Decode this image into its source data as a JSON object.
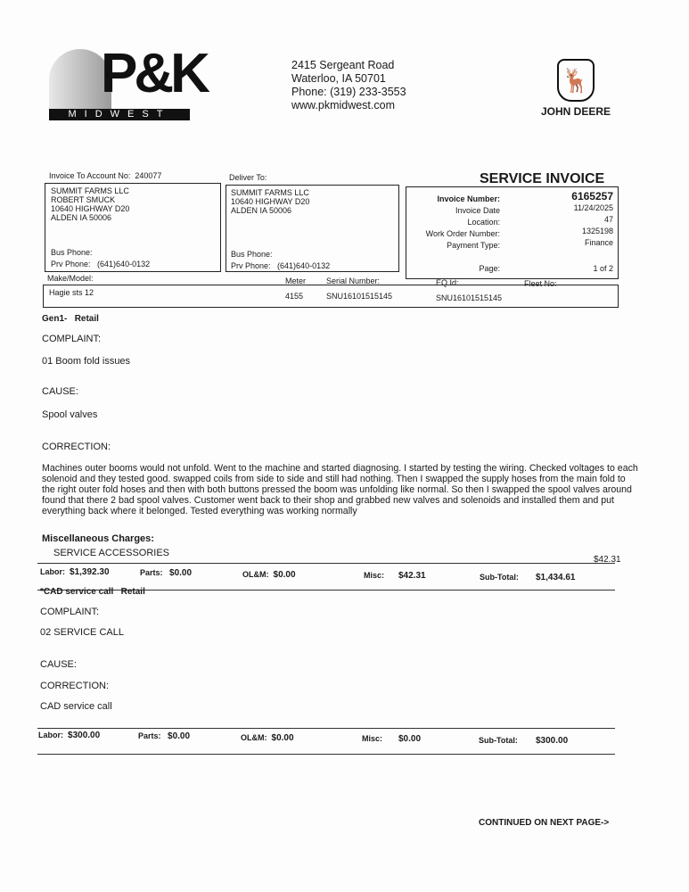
{
  "header": {
    "logo": {
      "main": "P&K",
      "sub": "MIDWEST"
    },
    "address": [
      "2415 Sergeant Road",
      "Waterloo, IA  50701",
      "Phone: (319) 233-3553",
      "www.pkmidwest.com"
    ],
    "brand_logo": "JOHN DEERE",
    "title": "SERVICE INVOICE"
  },
  "account": {
    "label": "Invoice To Account No:",
    "value": "240077"
  },
  "bill_to": {
    "lines": [
      "SUMMIT FARMS LLC",
      "ROBERT SMUCK",
      "10640 HIGHWAY D20",
      "ALDEN IA 50006"
    ],
    "bus_phone_label": "Bus Phone:",
    "prv_phone_label": "Prv Phone:",
    "prv_phone": "(641)640-0132"
  },
  "deliver_to": {
    "label": "Deliver To:",
    "lines": [
      "SUMMIT FARMS LLC",
      "10640 HIGHWAY D20",
      "ALDEN IA 50006"
    ],
    "bus_phone_label": "Bus Phone:",
    "prv_phone_label": "Prv Phone:",
    "prv_phone": "(641)640-0132"
  },
  "invoice_info": {
    "number_label": "Invoice Number:",
    "number": "6165257",
    "date_label": "Invoice Date",
    "date": "11/24/2025",
    "location_label": "Location:",
    "location": "47",
    "work_order_label": "Work Order Number:",
    "work_order": "1325198",
    "payment_label": "Payment Type:",
    "payment": "Finance",
    "page_label": "Page:",
    "page": "1 of 2"
  },
  "equipment": {
    "make_label": "Make/Model:",
    "make": "Hagie sts 12",
    "meter_label": "Meter",
    "meter": "4155",
    "serial_label": "Serial Number:",
    "serial": "SNU16101515145",
    "eq_label": "EQ Id:",
    "eq": "SNU16101515145",
    "fleet_label": "Fleet No:"
  },
  "jobs": [
    {
      "title": "Gen1-",
      "type": "Retail",
      "complaint_label": "COMPLAINT:",
      "complaint": "01 Boom fold issues",
      "cause_label": "CAUSE:",
      "cause": "Spool valves",
      "correction_label": "CORRECTION:",
      "correction": "Machines outer booms would not unfold. Went to the machine and started diagnosing. I started by testing the wiring. Checked voltages to each solenoid and they tested good. swapped coils from side to side and still had nothing. Then I swapped the supply hoses from the main fold to the right outer fold hoses and then with both buttons pressed the boom was unfolding like normal. So then I swapped the spool valves around found that there 2 bad spool valves. Customer went back to their shop and grabbed new valves and solenoids and installed them and put everything back where it belonged. Tested everything was working normally",
      "misc_label": "Miscellaneous Charges:",
      "misc_item": "SERVICE ACCESSORIES",
      "misc_item_amount": "$42.31",
      "totals": {
        "labor_label": "Labor:",
        "labor": "$1,392.30",
        "parts_label": "Parts:",
        "parts": "$0.00",
        "olm_label": "OL&M:",
        "olm": "$0.00",
        "misc_label": "Misc:",
        "misc": "$42.31",
        "sub_label": "Sub-Total:",
        "sub": "$1,434.61"
      }
    },
    {
      "title": "*CAD service call",
      "type": "Retail",
      "complaint_label": "COMPLAINT:",
      "complaint": "02 SERVICE CALL",
      "cause_label": "CAUSE:",
      "correction_label": "CORRECTION:",
      "correction": "CAD service call",
      "totals": {
        "labor_label": "Labor:",
        "labor": "$300.00",
        "parts_label": "Parts:",
        "parts": "$0.00",
        "olm_label": "OL&M:",
        "olm": "$0.00",
        "misc_label": "Misc:",
        "misc": "$0.00",
        "sub_label": "Sub-Total:",
        "sub": "$300.00"
      }
    }
  ],
  "footer": {
    "continued": "CONTINUED ON NEXT PAGE->"
  }
}
